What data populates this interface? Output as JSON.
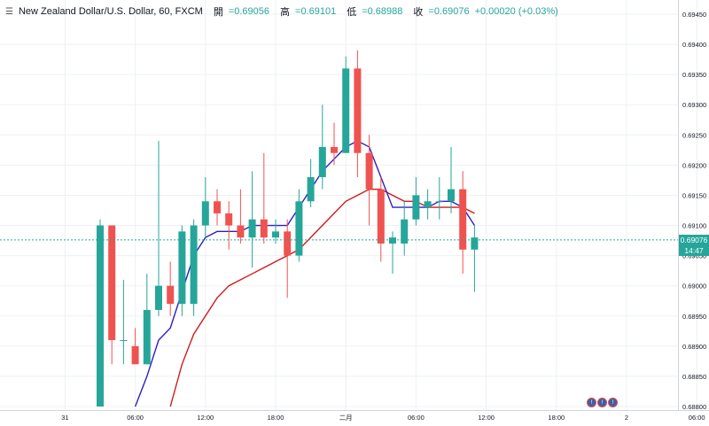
{
  "header": {
    "title": "New Zealand Dollar/U.S. Dollar, 60, FXCM",
    "open_label": "開",
    "open": "=0.69056",
    "high_label": "高",
    "high": "=0.69101",
    "low_label": "低",
    "low": "=0.68988",
    "close_label": "收",
    "close": "=0.69076",
    "change": "+0.00020 (+0.03%)"
  },
  "price_badge": {
    "price": "0.69076",
    "countdown": "14:47"
  },
  "events": [
    "!",
    "!",
    "!"
  ],
  "colors": {
    "up": "#26a69a",
    "down": "#ef5350",
    "ma_fast": "#2d1fbf",
    "ma_slow": "#d11a1a",
    "grid": "#eef0f3"
  },
  "chart_data": {
    "type": "candlestick",
    "y_ticks": [
      "0.69450",
      "0.69400",
      "0.69350",
      "0.69300",
      "0.69250",
      "0.69200",
      "0.69150",
      "0.69100",
      "0.69050",
      "0.69000",
      "0.68950",
      "0.68900",
      "0.68850",
      "0.68800"
    ],
    "x_ticks": [
      {
        "label": "31",
        "index": -3
      },
      {
        "label": "06:00",
        "index": 3
      },
      {
        "label": "12:00",
        "index": 9
      },
      {
        "label": "18:00",
        "index": 15
      },
      {
        "label": "二月",
        "index": 21
      },
      {
        "label": "06:00",
        "index": 27
      },
      {
        "label": "12:00",
        "index": 33
      },
      {
        "label": "18:00",
        "index": 39
      },
      {
        "label": "2",
        "index": 45
      },
      {
        "label": "06:00",
        "index": 51
      }
    ],
    "ylim": [
      0.688,
      0.6947
    ],
    "candles": [
      {
        "o": 0.688,
        "h": 0.6911,
        "l": 0.688,
        "c": 0.691
      },
      {
        "o": 0.691,
        "h": 0.691,
        "l": 0.6887,
        "c": 0.6891
      },
      {
        "o": 0.6891,
        "h": 0.6901,
        "l": 0.6887,
        "c": 0.6891
      },
      {
        "o": 0.689,
        "h": 0.6893,
        "l": 0.6887,
        "c": 0.6887
      },
      {
        "o": 0.6887,
        "h": 0.6902,
        "l": 0.6887,
        "c": 0.6896
      },
      {
        "o": 0.6896,
        "h": 0.6924,
        "l": 0.6895,
        "c": 0.69
      },
      {
        "o": 0.69,
        "h": 0.6904,
        "l": 0.6895,
        "c": 0.6897
      },
      {
        "o": 0.6897,
        "h": 0.691,
        "l": 0.6895,
        "c": 0.6909
      },
      {
        "o": 0.6897,
        "h": 0.6911,
        "l": 0.6895,
        "c": 0.691
      },
      {
        "o": 0.691,
        "h": 0.6918,
        "l": 0.6908,
        "c": 0.6914
      },
      {
        "o": 0.6914,
        "h": 0.6916,
        "l": 0.691,
        "c": 0.6912
      },
      {
        "o": 0.6912,
        "h": 0.6914,
        "l": 0.6906,
        "c": 0.691
      },
      {
        "o": 0.691,
        "h": 0.6916,
        "l": 0.6907,
        "c": 0.6908
      },
      {
        "o": 0.6908,
        "h": 0.6919,
        "l": 0.6903,
        "c": 0.6911
      },
      {
        "o": 0.6911,
        "h": 0.6922,
        "l": 0.6907,
        "c": 0.6908
      },
      {
        "o": 0.6908,
        "h": 0.6911,
        "l": 0.6907,
        "c": 0.6909
      },
      {
        "o": 0.6909,
        "h": 0.6911,
        "l": 0.6898,
        "c": 0.6905
      },
      {
        "o": 0.6905,
        "h": 0.6916,
        "l": 0.6904,
        "c": 0.6914
      },
      {
        "o": 0.6914,
        "h": 0.6921,
        "l": 0.6913,
        "c": 0.6918
      },
      {
        "o": 0.6918,
        "h": 0.693,
        "l": 0.6916,
        "c": 0.6923
      },
      {
        "o": 0.6923,
        "h": 0.6927,
        "l": 0.692,
        "c": 0.6922
      },
      {
        "o": 0.6922,
        "h": 0.6938,
        "l": 0.6922,
        "c": 0.6936
      },
      {
        "o": 0.6936,
        "h": 0.6939,
        "l": 0.6918,
        "c": 0.6922
      },
      {
        "o": 0.6922,
        "h": 0.6925,
        "l": 0.691,
        "c": 0.6916
      },
      {
        "o": 0.6916,
        "h": 0.6918,
        "l": 0.6904,
        "c": 0.6907
      },
      {
        "o": 0.6907,
        "h": 0.6909,
        "l": 0.6902,
        "c": 0.6908
      },
      {
        "o": 0.6907,
        "h": 0.6914,
        "l": 0.6905,
        "c": 0.6911
      },
      {
        "o": 0.6911,
        "h": 0.6918,
        "l": 0.691,
        "c": 0.6915
      },
      {
        "o": 0.6913,
        "h": 0.6916,
        "l": 0.6911,
        "c": 0.6914
      },
      {
        "o": 0.6914,
        "h": 0.6918,
        "l": 0.6911,
        "c": 0.6914
      },
      {
        "o": 0.6914,
        "h": 0.6923,
        "l": 0.6912,
        "c": 0.6916
      },
      {
        "o": 0.6916,
        "h": 0.6919,
        "l": 0.6902,
        "c": 0.6906
      },
      {
        "o": 0.6906,
        "h": 0.691,
        "l": 0.6899,
        "c": 0.6908
      }
    ],
    "ma_fast": [
      null,
      null,
      null,
      0.688,
      0.6885,
      0.6891,
      0.6893,
      0.6899,
      0.6905,
      0.6908,
      0.6909,
      0.6909,
      0.6909,
      0.691,
      0.691,
      0.691,
      0.691,
      0.6913,
      0.6916,
      0.6919,
      0.6921,
      0.6923,
      0.6924,
      0.6923,
      0.6918,
      0.6913,
      0.6913,
      0.6913,
      0.6913,
      0.6914,
      0.6914,
      0.6913,
      0.691
    ],
    "ma_slow": [
      null,
      null,
      null,
      null,
      null,
      null,
      0.688,
      0.6887,
      0.6892,
      0.6895,
      0.6898,
      0.69,
      0.6901,
      0.6902,
      0.6903,
      0.6904,
      0.6905,
      0.6906,
      0.6908,
      0.691,
      0.6912,
      0.6914,
      0.6915,
      0.6916,
      0.6916,
      0.6915,
      0.6914,
      0.6914,
      0.6913,
      0.6913,
      0.6913,
      0.6913,
      0.6912
    ]
  }
}
